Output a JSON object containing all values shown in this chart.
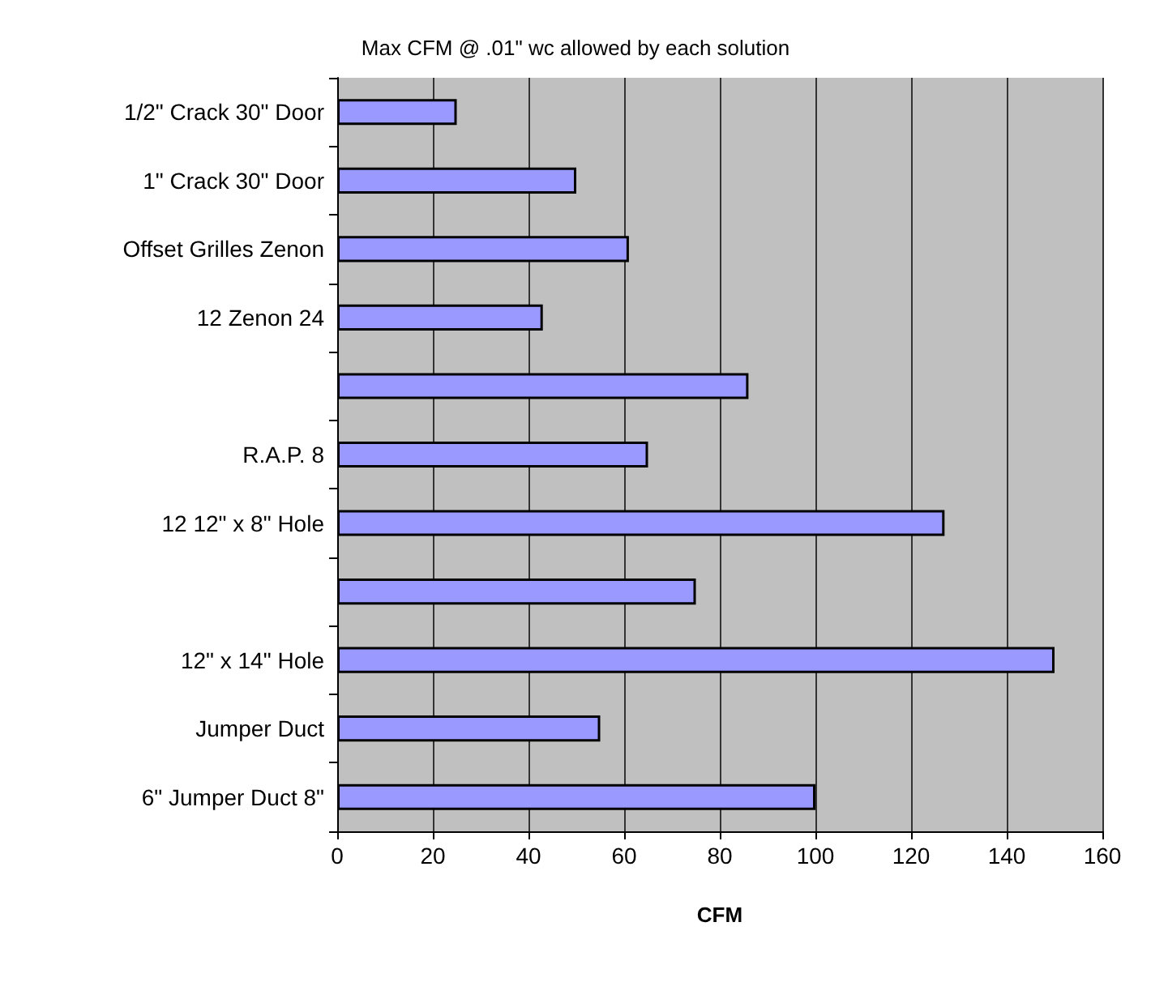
{
  "chart_data": {
    "type": "bar",
    "orientation": "horizontal",
    "title": "Max CFM @ .01\" wc allowed by each solution",
    "xlabel": "CFM",
    "categories": [
      "1/2\" Crack 30\" Door",
      "1\" Crack 30\" Door",
      "Offset Grilles Zenon",
      "12 Zenon 24",
      null,
      "R.A.P. 8",
      "12 12\" x 8\" Hole",
      null,
      "12\" x 14\" Hole",
      "Jumper Duct",
      "6\" Jumper Duct 8\""
    ],
    "values": [
      25,
      50,
      61,
      43,
      86,
      65,
      127,
      75,
      150,
      55,
      100
    ],
    "color": "#9999ff",
    "xlim": [
      0,
      160
    ],
    "xticks": [
      0,
      20,
      40,
      60,
      80,
      100,
      120,
      140,
      160
    ],
    "grid": "x"
  }
}
